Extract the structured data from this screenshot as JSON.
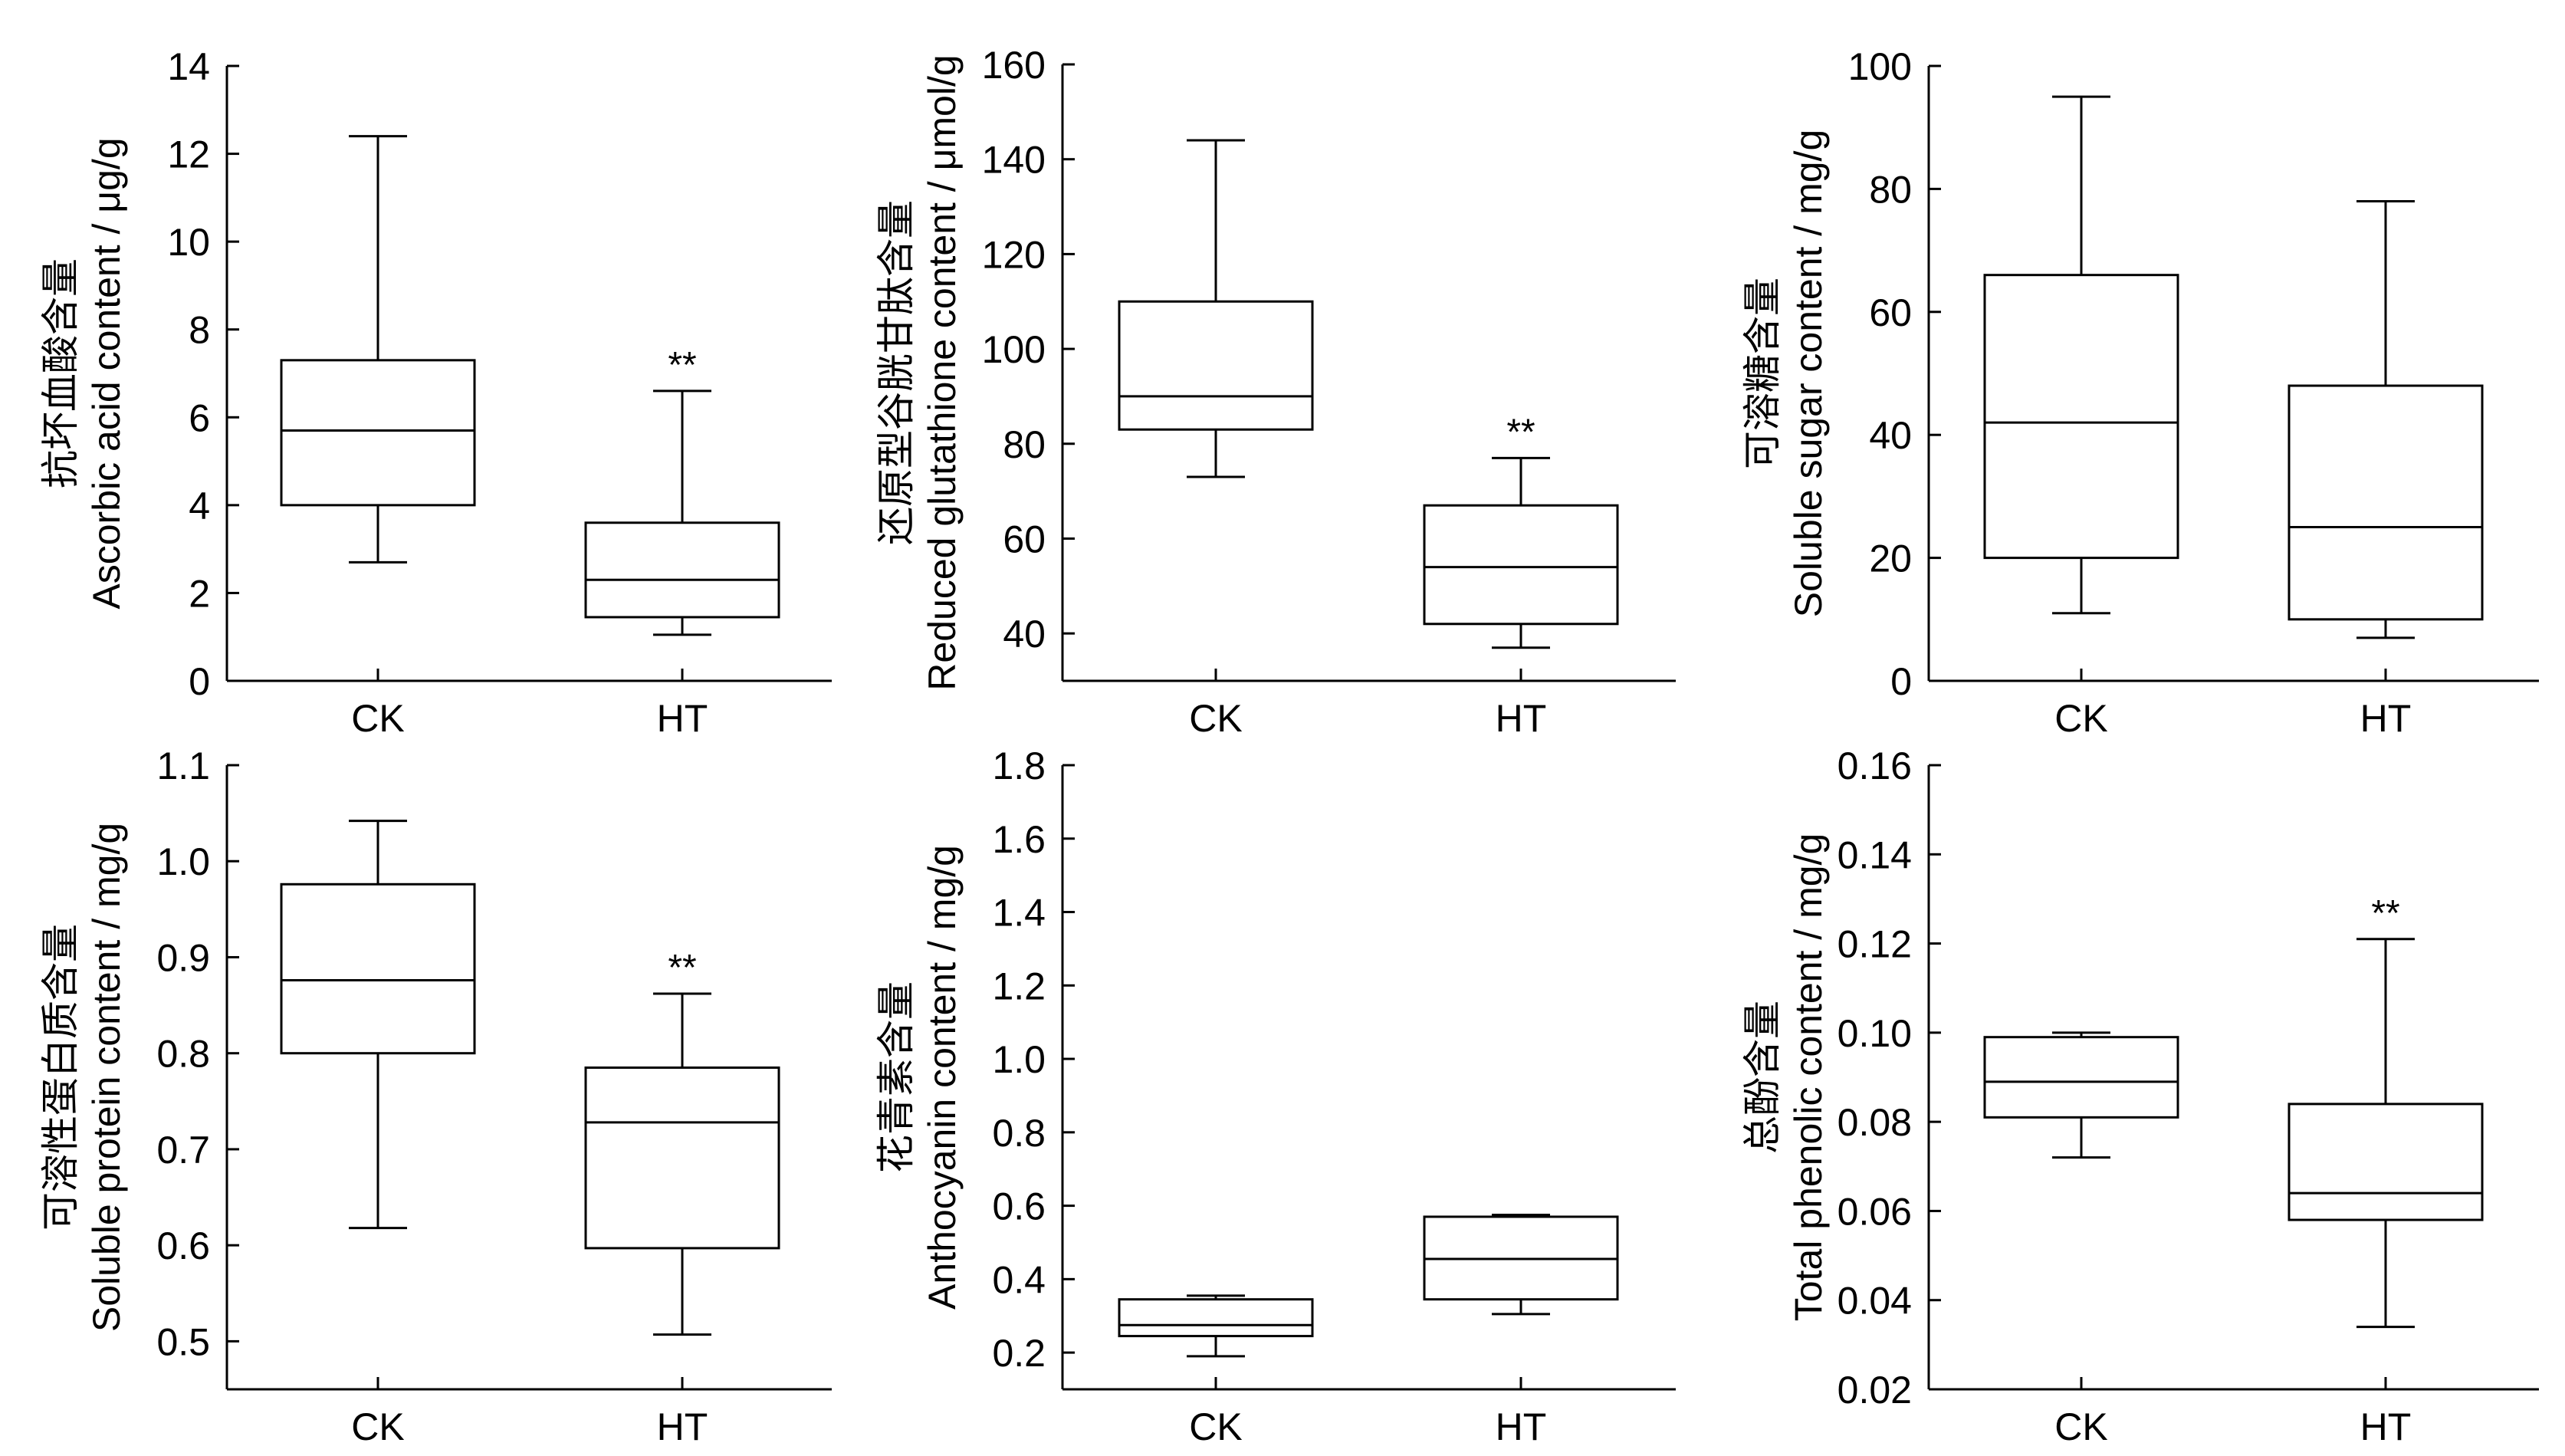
{
  "chart_data": [
    {
      "type": "box",
      "ylabel_cn": "抗坏血酸含量",
      "ylabel_en": "Ascorbic acid content / μg/g",
      "ylim": [
        0,
        14
      ],
      "yticks": [
        0,
        2,
        4,
        6,
        8,
        10,
        12,
        14
      ],
      "categories": [
        "CK",
        "HT"
      ],
      "boxes": [
        {
          "category": "CK",
          "min": 2.7,
          "q1": 4.0,
          "median": 5.7,
          "q3": 7.3,
          "max": 12.4,
          "annotation": ""
        },
        {
          "category": "HT",
          "min": 1.05,
          "q1": 1.45,
          "median": 2.3,
          "q3": 3.6,
          "max": 6.6,
          "annotation": "**"
        }
      ]
    },
    {
      "type": "box",
      "ylabel_cn": "还原型谷胱甘肽含量",
      "ylabel_en": "Reduced glutathione content  / μmol/g",
      "ylim": [
        30,
        160
      ],
      "yticks": [
        40,
        60,
        80,
        100,
        120,
        140,
        160
      ],
      "categories": [
        "CK",
        "HT"
      ],
      "boxes": [
        {
          "category": "CK",
          "min": 73,
          "q1": 83,
          "median": 90,
          "q3": 110,
          "max": 144,
          "annotation": ""
        },
        {
          "category": "HT",
          "min": 37,
          "q1": 42,
          "median": 54,
          "q3": 67,
          "max": 77,
          "annotation": "**"
        }
      ]
    },
    {
      "type": "box",
      "ylabel_cn": "可溶糖含量",
      "ylabel_en": "Soluble sugar content / mg/g",
      "ylim": [
        0,
        100
      ],
      "yticks": [
        0,
        20,
        40,
        60,
        80,
        100
      ],
      "categories": [
        "CK",
        "HT"
      ],
      "boxes": [
        {
          "category": "CK",
          "min": 11,
          "q1": 20,
          "median": 42,
          "q3": 66,
          "max": 95,
          "annotation": ""
        },
        {
          "category": "HT",
          "min": 7,
          "q1": 10,
          "median": 25,
          "q3": 48,
          "max": 78,
          "annotation": ""
        }
      ]
    },
    {
      "type": "box",
      "ylabel_cn": "可溶性蛋白质含量",
      "ylabel_en": "Soluble protein content  / mg/g",
      "ylim": [
        0.45,
        1.1
      ],
      "yticks": [
        0.5,
        0.6,
        0.7,
        0.8,
        0.9,
        1.0,
        1.1
      ],
      "categories": [
        "CK",
        "HT"
      ],
      "boxes": [
        {
          "category": "CK",
          "min": 0.618,
          "q1": 0.8,
          "median": 0.876,
          "q3": 0.976,
          "max": 1.042,
          "annotation": ""
        },
        {
          "category": "HT",
          "min": 0.507,
          "q1": 0.597,
          "median": 0.728,
          "q3": 0.785,
          "max": 0.862,
          "annotation": "**"
        }
      ]
    },
    {
      "type": "box",
      "ylabel_cn": "花青素含量",
      "ylabel_en": "Anthocyanin content / mg/g",
      "ylim": [
        0.1,
        1.8
      ],
      "yticks": [
        0.2,
        0.4,
        0.6,
        0.8,
        1.0,
        1.2,
        1.4,
        1.6,
        1.8
      ],
      "categories": [
        "CK",
        "HT"
      ],
      "boxes": [
        {
          "category": "CK",
          "min": 0.19,
          "q1": 0.245,
          "median": 0.275,
          "q3": 0.345,
          "max": 0.355,
          "annotation": ""
        },
        {
          "category": "HT",
          "min": 0.305,
          "q1": 0.345,
          "median": 0.455,
          "q3": 0.57,
          "max": 0.575,
          "annotation": ""
        }
      ]
    },
    {
      "type": "box",
      "ylabel_cn": "总酚含量",
      "ylabel_en": "Total phenolic content / mg/g",
      "ylim": [
        0.02,
        0.16
      ],
      "yticks": [
        0.02,
        0.04,
        0.06,
        0.08,
        0.1,
        0.12,
        0.14,
        0.16
      ],
      "categories": [
        "CK",
        "HT"
      ],
      "boxes": [
        {
          "category": "CK",
          "min": 0.072,
          "q1": 0.081,
          "median": 0.089,
          "q3": 0.099,
          "max": 0.1,
          "annotation": ""
        },
        {
          "category": "HT",
          "min": 0.034,
          "q1": 0.058,
          "median": 0.064,
          "q3": 0.084,
          "max": 0.121,
          "annotation": "**"
        }
      ]
    }
  ]
}
